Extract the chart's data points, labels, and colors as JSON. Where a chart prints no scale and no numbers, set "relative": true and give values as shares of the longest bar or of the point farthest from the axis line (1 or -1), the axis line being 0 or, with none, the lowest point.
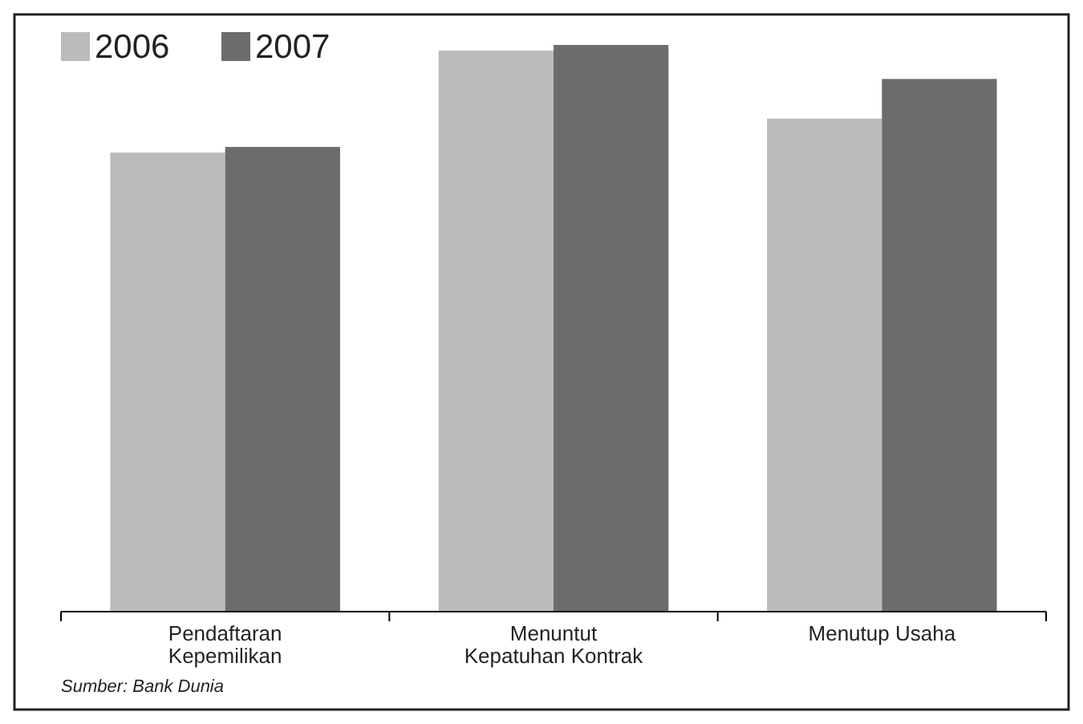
{
  "chart_data": {
    "type": "bar",
    "relative": true,
    "categories": [
      "Pendaftaran Kepemilikan",
      "Menuntut Kepatuhan Kontrak",
      "Menutup Usaha"
    ],
    "series": [
      {
        "name": "2006",
        "color": "#b9bbbd",
        "values": [
          0.81,
          0.99,
          0.87
        ]
      },
      {
        "name": "2007",
        "color": "#6b6c6e",
        "values": [
          0.82,
          1,
          0.94
        ]
      }
    ],
    "legend": "top left",
    "annotations": [
      "Sumber: Bank Dunia"
    ]
  }
}
